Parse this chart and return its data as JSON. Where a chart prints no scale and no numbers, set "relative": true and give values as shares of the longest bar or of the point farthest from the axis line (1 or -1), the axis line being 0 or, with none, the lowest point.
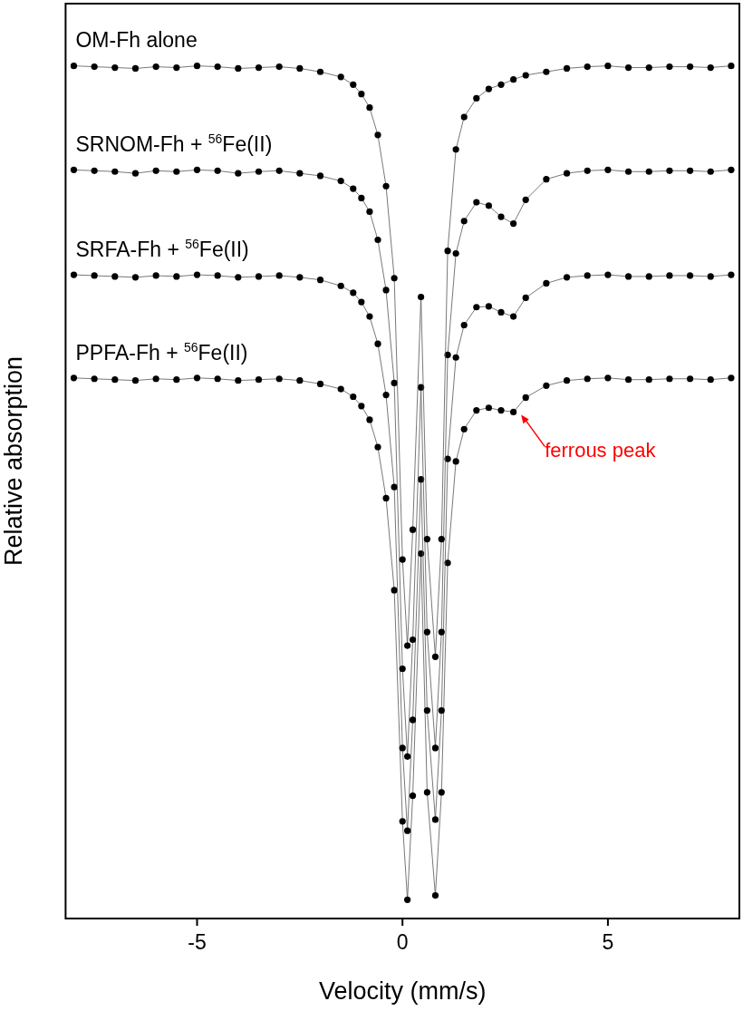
{
  "chart_data": {
    "type": "line",
    "xlabel": "Velocity (mm/s)",
    "ylabel": "Relative absorption",
    "relative": true,
    "xlim": [
      -8.2,
      8.2
    ],
    "xticks": [
      -5,
      0,
      5
    ],
    "grid": false,
    "legend": false,
    "marker": "circle",
    "line_style": "solid",
    "x": [
      -8,
      -7.5,
      -7,
      -6.5,
      -6,
      -5.5,
      -5,
      -4.5,
      -4,
      -3.5,
      -3,
      -2.5,
      -2,
      -1.5,
      -1.2,
      -1,
      -0.8,
      -0.6,
      -0.4,
      -0.2,
      0,
      0.12,
      0.25,
      0.45,
      0.6,
      0.8,
      0.95,
      1.1,
      1.3,
      1.5,
      1.8,
      2.1,
      2.4,
      2.7,
      3,
      3.5,
      4,
      4.5,
      5,
      5.5,
      6,
      6.5,
      7,
      7.5,
      8
    ],
    "series": [
      {
        "name": "OM-Fh alone",
        "color": "#000000",
        "values": [
          1.0,
          0.999,
          0.998,
          0.997,
          0.999,
          0.998,
          1.0,
          0.999,
          0.997,
          0.998,
          0.999,
          0.997,
          0.993,
          0.987,
          0.978,
          0.967,
          0.951,
          0.919,
          0.859,
          0.751,
          0.421,
          0.32,
          0.456,
          0.729,
          0.445,
          0.307,
          0.445,
          0.783,
          0.902,
          0.94,
          0.962,
          0.973,
          0.978,
          0.984,
          0.989,
          0.993,
          0.997,
          0.999,
          1.0,
          0.998,
          0.998,
          0.999,
          0.999,
          0.998,
          1.0
        ]
      },
      {
        "name": "SRNOM-Fh + $^{56}$Fe(II)",
        "color": "#000000",
        "values": [
          0.878,
          0.877,
          0.876,
          0.874,
          0.877,
          0.876,
          0.878,
          0.877,
          0.874,
          0.876,
          0.877,
          0.874,
          0.871,
          0.865,
          0.856,
          0.845,
          0.829,
          0.796,
          0.737,
          0.628,
          0.293,
          0.19,
          0.327,
          0.623,
          0.336,
          0.2,
          0.336,
          0.661,
          0.78,
          0.818,
          0.84,
          0.836,
          0.823,
          0.815,
          0.843,
          0.867,
          0.874,
          0.877,
          0.878,
          0.876,
          0.876,
          0.877,
          0.877,
          0.876,
          0.878
        ]
      },
      {
        "name": "SRFA-Fh + $^{56}$Fe(II)",
        "color": "#000000",
        "values": [
          0.755,
          0.754,
          0.753,
          0.752,
          0.754,
          0.753,
          0.755,
          0.754,
          0.752,
          0.753,
          0.754,
          0.752,
          0.749,
          0.742,
          0.734,
          0.723,
          0.706,
          0.674,
          0.614,
          0.506,
          0.2,
          0.103,
          0.233,
          0.515,
          0.244,
          0.116,
          0.244,
          0.539,
          0.658,
          0.696,
          0.717,
          0.718,
          0.711,
          0.706,
          0.728,
          0.745,
          0.752,
          0.754,
          0.755,
          0.753,
          0.753,
          0.754,
          0.754,
          0.753,
          0.755
        ]
      },
      {
        "name": "PPFA-Fh + $^{56}$Fe(II)",
        "color": "#000000",
        "values": [
          0.634,
          0.633,
          0.632,
          0.631,
          0.633,
          0.632,
          0.634,
          0.633,
          0.631,
          0.632,
          0.633,
          0.631,
          0.627,
          0.621,
          0.612,
          0.601,
          0.585,
          0.553,
          0.493,
          0.385,
          0.114,
          0.022,
          0.144,
          0.428,
          0.148,
          0.027,
          0.148,
          0.417,
          0.536,
          0.574,
          0.596,
          0.599,
          0.596,
          0.594,
          0.611,
          0.625,
          0.631,
          0.633,
          0.634,
          0.632,
          0.632,
          0.633,
          0.633,
          0.632,
          0.634
        ]
      }
    ],
    "annotations": [
      {
        "text": "ferrous peak",
        "x": 2.8,
        "y": 0.594
      }
    ]
  }
}
